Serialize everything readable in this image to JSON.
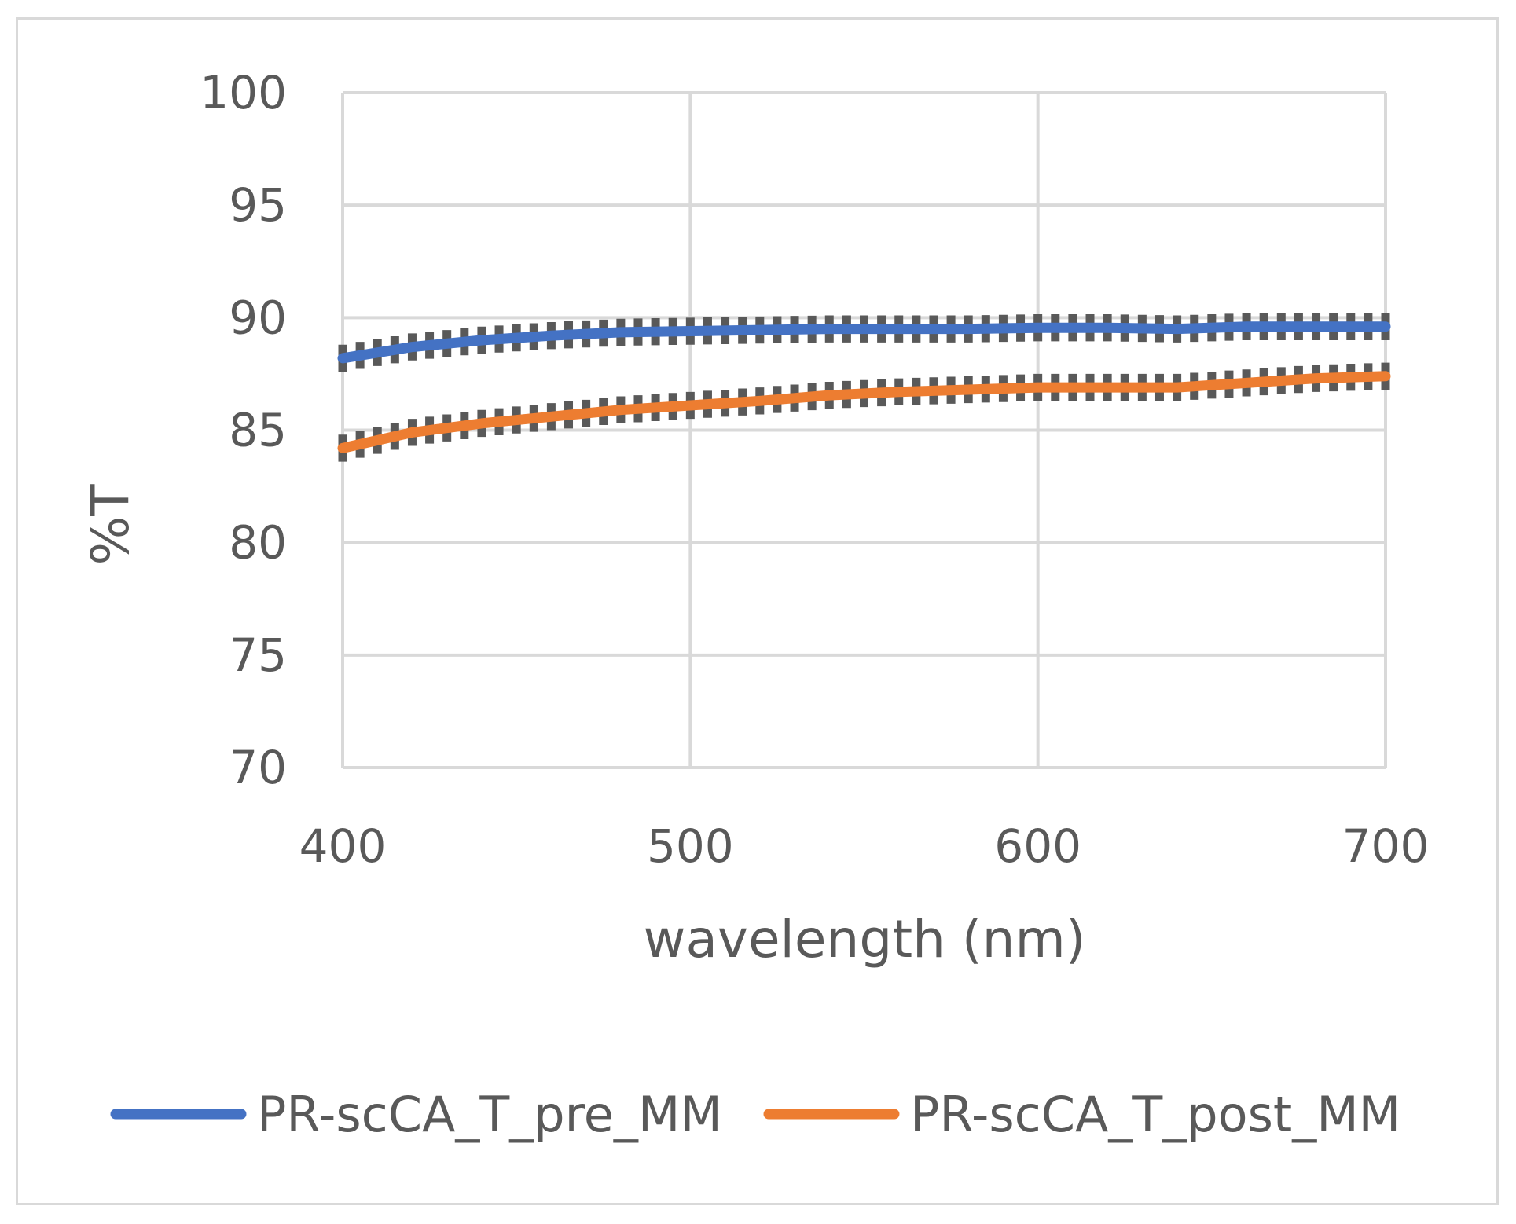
{
  "chart_data": {
    "type": "line",
    "title": "",
    "xlabel": "wavelength (nm)",
    "ylabel": "%T",
    "xlim": [
      400,
      700
    ],
    "ylim": [
      70,
      100
    ],
    "x_ticks": [
      400,
      500,
      600,
      700
    ],
    "y_ticks": [
      70,
      75,
      80,
      85,
      90,
      95,
      100
    ],
    "grid": true,
    "legend_position": "bottom",
    "series": [
      {
        "name": "PR-scCA_T_pre_MM",
        "color": "#4472c4",
        "error_bar": 0.6,
        "points": [
          [
            400,
            88.2
          ],
          [
            420,
            88.7
          ],
          [
            440,
            89.0
          ],
          [
            460,
            89.2
          ],
          [
            480,
            89.35
          ],
          [
            500,
            89.4
          ],
          [
            520,
            89.45
          ],
          [
            540,
            89.5
          ],
          [
            560,
            89.5
          ],
          [
            580,
            89.5
          ],
          [
            600,
            89.55
          ],
          [
            620,
            89.55
          ],
          [
            640,
            89.5
          ],
          [
            660,
            89.6
          ],
          [
            680,
            89.6
          ],
          [
            700,
            89.6
          ]
        ]
      },
      {
        "name": "PR-scCA_T_post_MM",
        "color": "#ed7d31",
        "error_bar": 0.6,
        "points": [
          [
            400,
            84.2
          ],
          [
            420,
            84.9
          ],
          [
            440,
            85.3
          ],
          [
            460,
            85.6
          ],
          [
            480,
            85.9
          ],
          [
            500,
            86.1
          ],
          [
            520,
            86.3
          ],
          [
            540,
            86.55
          ],
          [
            560,
            86.7
          ],
          [
            580,
            86.8
          ],
          [
            600,
            86.9
          ],
          [
            620,
            86.9
          ],
          [
            640,
            86.9
          ],
          [
            660,
            87.1
          ],
          [
            680,
            87.3
          ],
          [
            700,
            87.4
          ]
        ]
      }
    ]
  },
  "colors": {
    "grid": "#d9d9d9",
    "text": "#595959",
    "error_bar": "#595959"
  }
}
